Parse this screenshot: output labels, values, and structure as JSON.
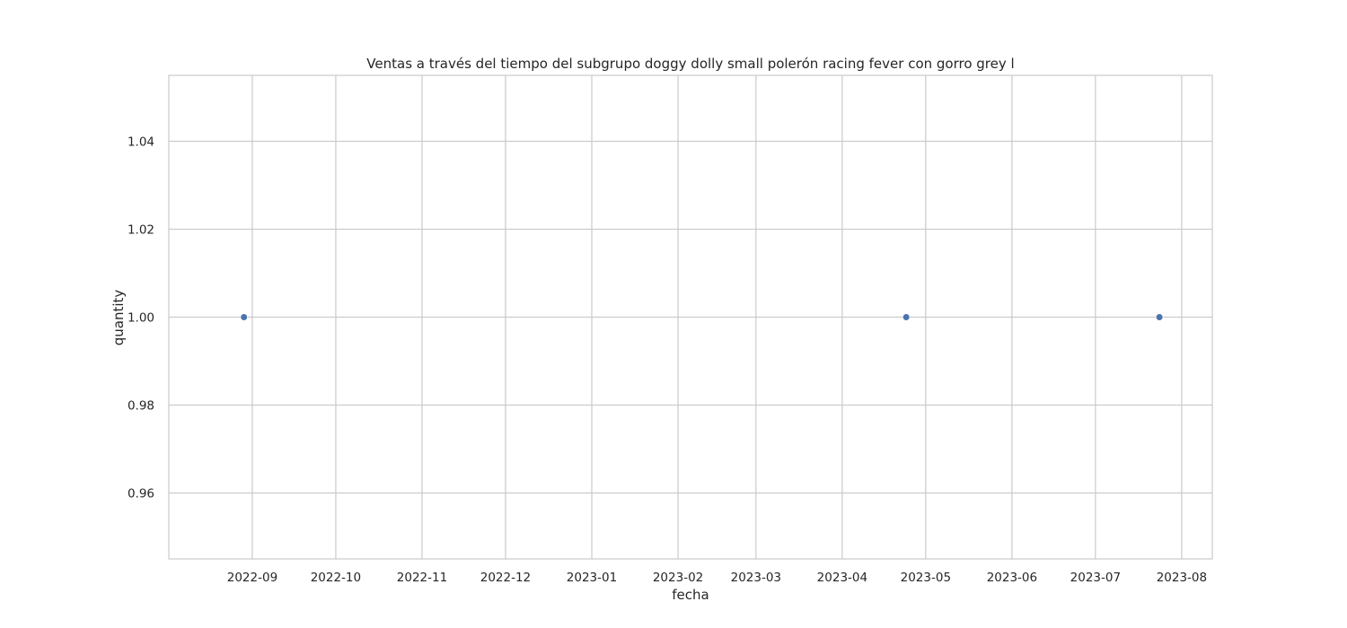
{
  "chart_data": {
    "type": "scatter",
    "title": "Ventas a través del tiempo del subgrupo doggy dolly small polerón racing fever con gorro grey l",
    "xlabel": "fecha",
    "ylabel": "quantity",
    "x_ticks": [
      "2022-09",
      "2022-10",
      "2022-11",
      "2022-12",
      "2023-01",
      "2023-02",
      "2023-03",
      "2023-04",
      "2023-05",
      "2023-06",
      "2023-07",
      "2023-08"
    ],
    "y_ticks": [
      "0.96",
      "0.98",
      "1.00",
      "1.02",
      "1.04"
    ],
    "xlim": [
      "2022-08-02",
      "2023-08-12"
    ],
    "ylim": [
      0.945,
      1.055
    ],
    "grid": true,
    "points": [
      {
        "x": "2022-08-29",
        "y": 1.0
      },
      {
        "x": "2023-04-24",
        "y": 1.0
      },
      {
        "x": "2023-07-24",
        "y": 1.0
      }
    ],
    "colors": {
      "point": "#4c72b0",
      "grid": "#cccccc",
      "frame": "#cccccc",
      "text": "#262626"
    }
  }
}
